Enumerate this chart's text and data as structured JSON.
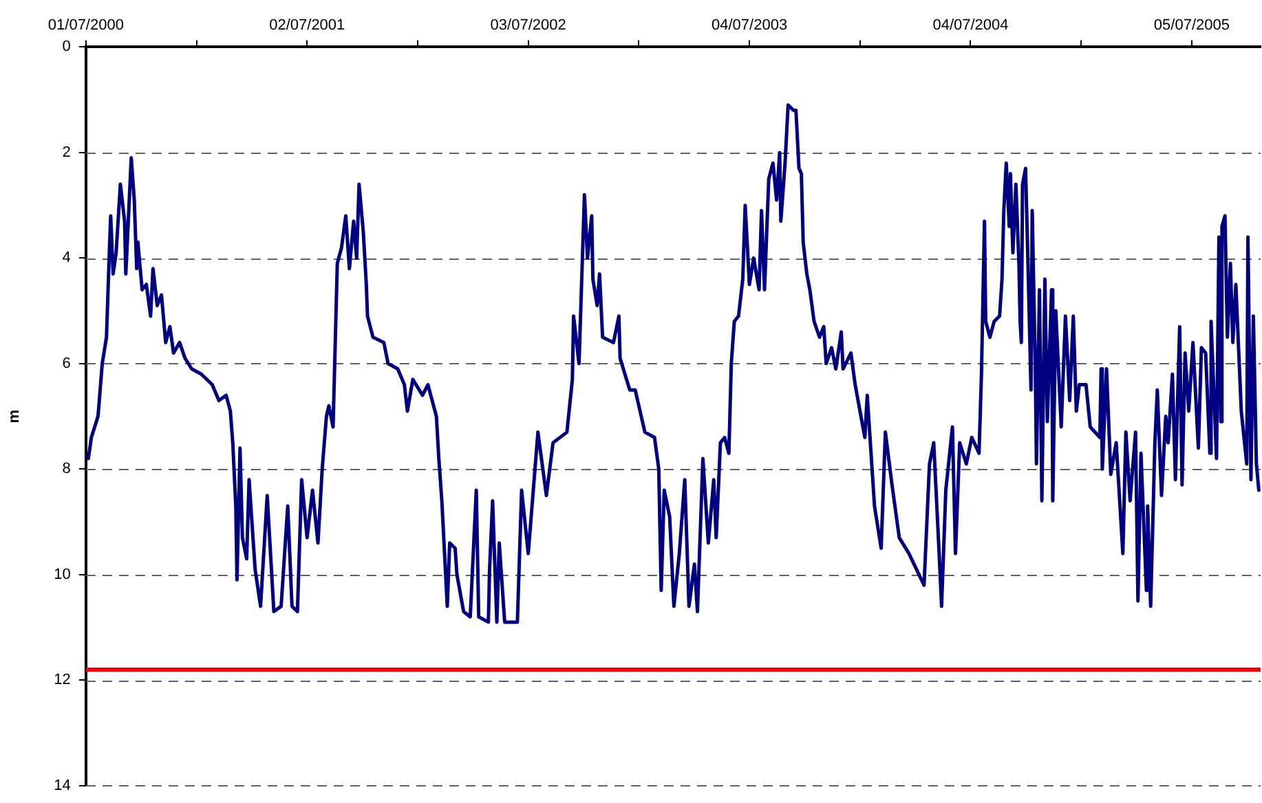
{
  "chart_data": {
    "type": "line",
    "ylabel": "m",
    "xlim": [
      "2000-07-01",
      "2005-10-27"
    ],
    "xticks": [
      {
        "value": "2000-07-01",
        "label": "01/07/2000"
      },
      {
        "value": "2000-12-31",
        "label": null
      },
      {
        "value": "2001-07-02",
        "label": "02/07/2001"
      },
      {
        "value": "2002-01-01",
        "label": null
      },
      {
        "value": "2002-07-03",
        "label": "03/07/2002"
      },
      {
        "value": "2003-01-02",
        "label": null
      },
      {
        "value": "2003-07-04",
        "label": "04/07/2003"
      },
      {
        "value": "2004-01-03",
        "label": null
      },
      {
        "value": "2004-07-04",
        "label": "04/07/2004"
      },
      {
        "value": "2005-01-03",
        "label": null
      },
      {
        "value": "2005-07-05",
        "label": "05/07/2005"
      }
    ],
    "ylim": [
      14,
      0
    ],
    "yticks": [
      0,
      2,
      4,
      6,
      8,
      10,
      12,
      14
    ],
    "grid": "y",
    "ref_lines": [
      {
        "axis": "y",
        "value": 11.8,
        "color": "#ff0000"
      }
    ],
    "series": [
      {
        "color": "#000080",
        "x": [
          "2000-07-05",
          "2000-07-10",
          "2000-07-21",
          "2000-07-28",
          "2000-08-04",
          "2000-08-09",
          "2000-08-11",
          "2000-08-15",
          "2000-08-20",
          "2000-08-27",
          "2000-09-03",
          "2000-09-05",
          "2000-09-14",
          "2000-09-19",
          "2000-09-23",
          "2000-09-25",
          "2000-10-02",
          "2000-10-09",
          "2000-10-16",
          "2000-10-20",
          "2000-10-27",
          "2000-11-03",
          "2000-11-10",
          "2000-11-17",
          "2000-11-23",
          "2000-12-03",
          "2000-12-12",
          "2000-12-23",
          "2001-01-08",
          "2001-01-26",
          "2001-02-06",
          "2001-02-18",
          "2001-02-25",
          "2001-03-01",
          "2001-03-06",
          "2001-03-08",
          "2001-03-13",
          "2001-03-17",
          "2001-03-24",
          "2001-03-28",
          "2001-04-07",
          "2001-04-16",
          "2001-04-27",
          "2001-05-08",
          "2001-05-20",
          "2001-05-31",
          "2001-06-07",
          "2001-06-16",
          "2001-06-23",
          "2001-07-02",
          "2001-07-11",
          "2001-07-20",
          "2001-07-27",
          "2001-08-03",
          "2001-08-07",
          "2001-08-14",
          "2001-08-21",
          "2001-08-28",
          "2001-09-04",
          "2001-09-10",
          "2001-09-17",
          "2001-09-22",
          "2001-09-26",
          "2001-10-03",
          "2001-10-08",
          "2001-10-10",
          "2001-10-19",
          "2001-11-06",
          "2001-11-13",
          "2001-11-29",
          "2001-12-10",
          "2001-12-15",
          "2001-12-24",
          "2002-01-09",
          "2002-01-18",
          "2002-02-01",
          "2002-02-05",
          "2002-02-10",
          "2002-02-19",
          "2002-02-23",
          "2002-03-04",
          "2002-03-07",
          "2002-03-18",
          "2002-03-29",
          "2002-04-08",
          "2002-04-12",
          "2002-04-28",
          "2002-04-30",
          "2002-05-05",
          "2002-05-12",
          "2002-05-16",
          "2002-05-25",
          "2002-06-15",
          "2002-06-22",
          "2002-07-03",
          "2002-07-19",
          "2002-08-02",
          "2002-08-13",
          "2002-09-05",
          "2002-09-14",
          "2002-09-16",
          "2002-09-25",
          "2002-10-04",
          "2002-10-09",
          "2002-10-16",
          "2002-10-18",
          "2002-10-25",
          "2002-10-29",
          "2002-11-03",
          "2002-11-21",
          "2002-11-30",
          "2002-12-02",
          "2002-12-18",
          "2002-12-27",
          "2003-01-12",
          "2003-01-28",
          "2003-02-04",
          "2003-02-08",
          "2003-02-13",
          "2003-02-22",
          "2003-03-01",
          "2003-03-10",
          "2003-03-19",
          "2003-03-26",
          "2003-04-04",
          "2003-04-09",
          "2003-04-18",
          "2003-04-27",
          "2003-05-06",
          "2003-05-10",
          "2003-05-17",
          "2003-05-24",
          "2003-05-31",
          "2003-06-04",
          "2003-06-09",
          "2003-06-16",
          "2003-06-23",
          "2003-06-27",
          "2003-07-04",
          "2003-07-11",
          "2003-07-20",
          "2003-07-24",
          "2003-07-29",
          "2003-08-05",
          "2003-08-12",
          "2003-08-18",
          "2003-08-23",
          "2003-08-25",
          "2003-09-01",
          "2003-09-06",
          "2003-09-15",
          "2003-09-19",
          "2003-09-24",
          "2003-09-28",
          "2003-10-01",
          "2003-10-07",
          "2003-10-12",
          "2003-10-19",
          "2003-10-28",
          "2003-11-04",
          "2003-11-08",
          "2003-11-17",
          "2003-11-24",
          "2003-12-03",
          "2003-12-06",
          "2003-12-19",
          "2003-12-26",
          "2004-01-11",
          "2004-01-15",
          "2004-01-27",
          "2004-02-07",
          "2004-02-14",
          "2004-02-25",
          "2004-03-08",
          "2004-03-24",
          "2004-04-18",
          "2004-04-27",
          "2004-05-04",
          "2004-05-13",
          "2004-05-17",
          "2004-05-24",
          "2004-06-04",
          "2004-06-09",
          "2004-06-16",
          "2004-06-27",
          "2004-07-06",
          "2004-07-18",
          "2004-07-22",
          "2004-07-27",
          "2004-07-29",
          "2004-08-05",
          "2004-08-12",
          "2004-08-21",
          "2004-08-25",
          "2004-08-28",
          "2004-09-01",
          "2004-09-06",
          "2004-09-08",
          "2004-09-12",
          "2004-09-17",
          "2004-09-22",
          "2004-09-24",
          "2004-09-26",
          "2004-09-28",
          "2004-10-03",
          "2004-10-07",
          "2004-10-12",
          "2004-10-14",
          "2004-10-19",
          "2004-10-21",
          "2004-10-26",
          "2004-10-30",
          "2004-11-04",
          "2004-11-08",
          "2004-11-15",
          "2004-11-17",
          "2004-11-22",
          "2004-12-01",
          "2004-12-08",
          "2004-12-15",
          "2004-12-21",
          "2004-12-26",
          "2004-12-31",
          "2005-01-11",
          "2005-01-18",
          "2005-02-03",
          "2005-02-05",
          "2005-02-07",
          "2005-02-14",
          "2005-02-21",
          "2005-03-02",
          "2005-03-13",
          "2005-03-18",
          "2005-03-25",
          "2005-04-03",
          "2005-04-07",
          "2005-04-12",
          "2005-04-21",
          "2005-04-23",
          "2005-04-28",
          "2005-05-05",
          "2005-05-09",
          "2005-05-16",
          "2005-05-23",
          "2005-05-27",
          "2005-06-03",
          "2005-06-08",
          "2005-06-15",
          "2005-06-19",
          "2005-06-24",
          "2005-06-30",
          "2005-07-07",
          "2005-07-16",
          "2005-07-21",
          "2005-07-28",
          "2005-08-04",
          "2005-08-06",
          "2005-08-15",
          "2005-08-19",
          "2005-08-22",
          "2005-08-24",
          "2005-08-29",
          "2005-09-02",
          "2005-09-07",
          "2005-09-11",
          "2005-09-16",
          "2005-09-25",
          "2005-10-04",
          "2005-10-06",
          "2005-10-11",
          "2005-10-15",
          "2005-10-20",
          "2005-10-24"
        ],
        "values": [
          7.8,
          7.4,
          7.0,
          6.0,
          5.5,
          3.8,
          3.2,
          4.3,
          3.9,
          2.6,
          3.3,
          4.3,
          2.1,
          2.9,
          4.2,
          3.7,
          4.6,
          4.5,
          5.1,
          4.2,
          4.9,
          4.7,
          5.6,
          5.3,
          5.8,
          5.6,
          5.9,
          6.1,
          6.2,
          6.4,
          6.7,
          6.6,
          6.9,
          7.5,
          8.7,
          10.1,
          7.6,
          9.3,
          9.7,
          8.2,
          9.9,
          10.6,
          8.5,
          10.7,
          10.6,
          8.7,
          10.6,
          10.7,
          8.2,
          9.3,
          8.4,
          9.4,
          8.0,
          7.0,
          6.8,
          7.2,
          4.1,
          3.8,
          3.2,
          4.2,
          3.3,
          4.0,
          2.6,
          3.5,
          4.5,
          5.1,
          5.5,
          5.6,
          6.0,
          6.1,
          6.4,
          6.9,
          6.3,
          6.6,
          6.4,
          7.0,
          7.8,
          8.6,
          10.6,
          9.4,
          9.5,
          10.0,
          10.7,
          10.8,
          8.4,
          10.8,
          10.9,
          9.9,
          8.6,
          10.9,
          9.4,
          10.9,
          10.9,
          8.4,
          9.6,
          7.3,
          8.5,
          7.5,
          7.3,
          6.3,
          5.1,
          6.0,
          2.8,
          4.0,
          3.2,
          4.4,
          4.9,
          4.3,
          5.5,
          5.6,
          5.1,
          5.9,
          6.5,
          6.5,
          7.3,
          7.4,
          8.0,
          10.3,
          8.4,
          8.9,
          10.6,
          9.6,
          8.2,
          10.6,
          9.8,
          10.7,
          7.8,
          9.4,
          8.2,
          9.3,
          7.5,
          7.4,
          7.7,
          6.0,
          5.2,
          5.1,
          4.4,
          3.0,
          4.5,
          4.0,
          4.6,
          3.1,
          4.6,
          2.5,
          2.2,
          2.9,
          2.0,
          3.3,
          2.2,
          1.1,
          1.2,
          1.2,
          2.3,
          2.4,
          3.7,
          4.3,
          4.6,
          5.2,
          5.5,
          5.3,
          6.0,
          5.7,
          6.1,
          5.4,
          6.1,
          5.8,
          6.4,
          7.4,
          6.6,
          8.7,
          9.5,
          7.3,
          8.3,
          9.3,
          9.6,
          10.2,
          7.9,
          7.5,
          9.6,
          10.6,
          8.4,
          7.2,
          9.6,
          7.5,
          7.9,
          7.4,
          7.7,
          6.2,
          3.3,
          5.2,
          5.5,
          5.2,
          5.1,
          4.4,
          3.1,
          2.2,
          3.4,
          2.4,
          3.9,
          2.6,
          4.1,
          5.2,
          5.6,
          2.6,
          2.3,
          4.1,
          6.5,
          3.1,
          6.0,
          7.9,
          4.6,
          8.6,
          4.4,
          7.1,
          4.6,
          8.6,
          5.0,
          7.2,
          5.1,
          6.7,
          5.1,
          6.9,
          6.4,
          6.4,
          7.2,
          7.4,
          6.1,
          8.0,
          6.1,
          8.1,
          7.5,
          9.6,
          7.3,
          8.6,
          7.3,
          10.5,
          7.7,
          10.3,
          8.7,
          10.6,
          7.5,
          6.5,
          8.5,
          7.0,
          7.5,
          6.2,
          8.2,
          5.3,
          8.3,
          5.8,
          6.9,
          5.6,
          7.6,
          5.7,
          5.8,
          7.7,
          5.2,
          7.8,
          3.6,
          7.1,
          3.4,
          3.2,
          5.5,
          4.1,
          5.6,
          4.5,
          6.9,
          7.9,
          3.6,
          8.2,
          5.1,
          7.9,
          8.4
        ]
      }
    ]
  }
}
